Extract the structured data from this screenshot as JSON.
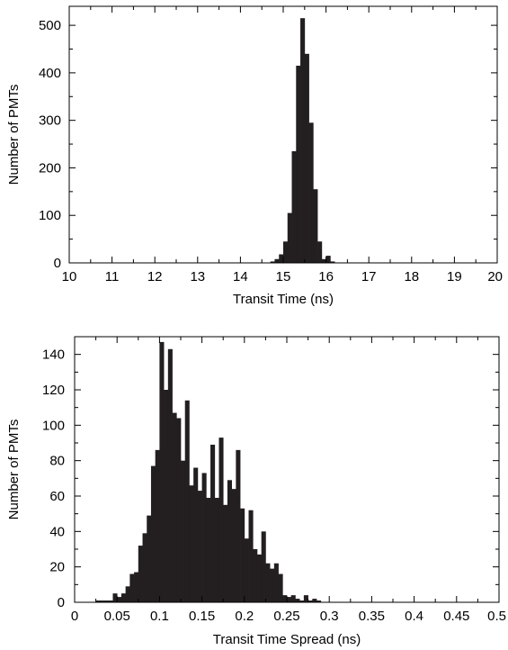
{
  "chart_data": [
    {
      "type": "bar",
      "title": "",
      "xlabel": "Transit Time (ns)",
      "ylabel": "Number of PMTs",
      "xlim": [
        10,
        20
      ],
      "ylim": [
        0,
        540
      ],
      "xticks": [
        10,
        11,
        12,
        13,
        14,
        15,
        16,
        17,
        18,
        19,
        20
      ],
      "xtick_labels": [
        "10",
        "11",
        "12",
        "13",
        "14",
        "15",
        "16",
        "17",
        "18",
        "19",
        "20"
      ],
      "yticks": [
        0,
        100,
        200,
        300,
        400,
        500
      ],
      "ytick_labels": [
        "0",
        "100",
        "200",
        "300",
        "400",
        "500"
      ],
      "bin_width": 0.1,
      "grid": false,
      "bar_color": "#231f20",
      "x": [
        14.7,
        14.8,
        14.9,
        15.0,
        15.1,
        15.2,
        15.3,
        15.4,
        15.5,
        15.6,
        15.7,
        15.8,
        15.9,
        16.0,
        16.1
      ],
      "values": [
        3,
        8,
        18,
        45,
        105,
        235,
        415,
        515,
        440,
        295,
        155,
        45,
        8,
        15,
        3
      ]
    },
    {
      "type": "bar",
      "title": "",
      "xlabel": "Transit Time Spread (ns)",
      "ylabel": "Number of PMTs",
      "xlim": [
        0,
        0.5
      ],
      "ylim": [
        0,
        150
      ],
      "xticks": [
        0,
        0.05,
        0.1,
        0.15,
        0.2,
        0.25,
        0.3,
        0.35,
        0.4,
        0.45,
        0.5
      ],
      "xtick_labels": [
        "0",
        "0.05",
        "0.1",
        "0.15",
        "0.2",
        "0.25",
        "0.3",
        "0.35",
        "0.4",
        "0.45",
        "0.5"
      ],
      "yticks": [
        0,
        20,
        40,
        60,
        80,
        100,
        120,
        140
      ],
      "ytick_labels": [
        "0",
        "20",
        "40",
        "60",
        "80",
        "100",
        "120",
        "140"
      ],
      "bin_width": 0.005,
      "grid": false,
      "bar_color": "#231f20",
      "x": [
        0.02,
        0.025,
        0.03,
        0.035,
        0.04,
        0.045,
        0.05,
        0.055,
        0.06,
        0.065,
        0.07,
        0.075,
        0.08,
        0.085,
        0.09,
        0.095,
        0.1,
        0.105,
        0.11,
        0.115,
        0.12,
        0.125,
        0.13,
        0.135,
        0.14,
        0.145,
        0.15,
        0.155,
        0.16,
        0.165,
        0.17,
        0.175,
        0.18,
        0.185,
        0.19,
        0.195,
        0.2,
        0.205,
        0.21,
        0.215,
        0.22,
        0.225,
        0.23,
        0.235,
        0.24,
        0.245,
        0.25,
        0.255,
        0.26,
        0.265,
        0.27,
        0.275,
        0.28,
        0.285
      ],
      "values": [
        0,
        1,
        1,
        1,
        1,
        5,
        3,
        5,
        9,
        16,
        17,
        32,
        39,
        49,
        77,
        86,
        147,
        120,
        143,
        107,
        104,
        80,
        114,
        66,
        76,
        63,
        73,
        59,
        89,
        59,
        93,
        55,
        69,
        64,
        86,
        53,
        36,
        52,
        30,
        27,
        40,
        22,
        19,
        22,
        16,
        4,
        3,
        4,
        2,
        1,
        4,
        1,
        2,
        1
      ]
    }
  ]
}
